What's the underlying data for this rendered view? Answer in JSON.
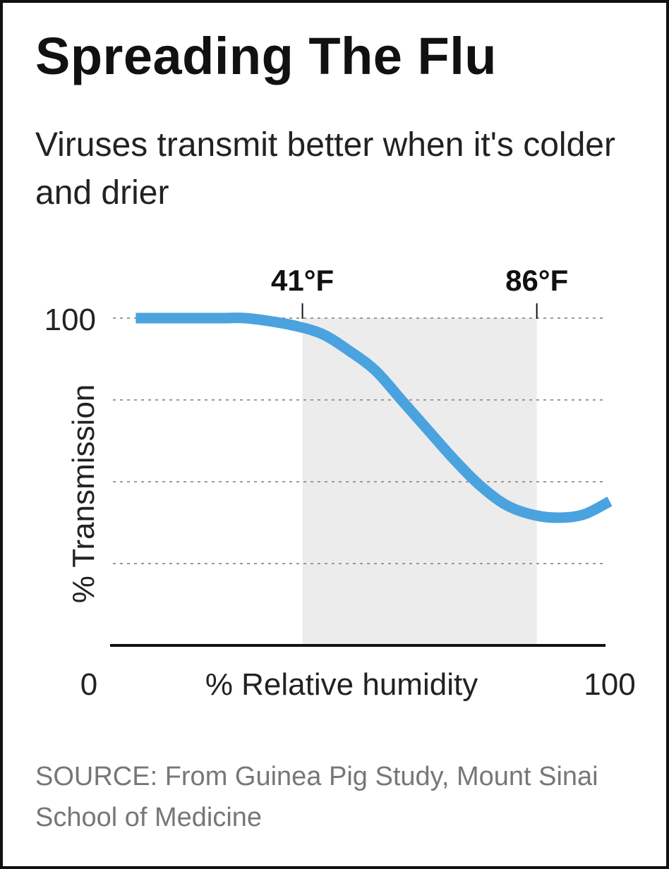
{
  "header": {
    "title": "Spreading The Flu",
    "subtitle": "Viruses transmit better when it's colder and drier"
  },
  "footer": {
    "source": "SOURCE: From Guinea Pig Study, Mount Sinai School of Medicine"
  },
  "chart_data": {
    "type": "line",
    "title": "Spreading The Flu",
    "subtitle": "Viruses transmit better when it's colder and drier",
    "xlabel": "% Relative humidity",
    "ylabel": "% Transmission",
    "xlim": [
      0,
      100
    ],
    "ylim": [
      0,
      100
    ],
    "x_tick_labels": [
      "0",
      "100"
    ],
    "y_tick_labels": [
      "100"
    ],
    "y_gridlines": [
      25,
      50,
      75,
      100
    ],
    "grid": true,
    "colors": {
      "line": "#4aa3df",
      "band": "#ececec",
      "axis": "#111111",
      "grid": "#999999"
    },
    "highlight_band": {
      "x_start": 41,
      "x_end": 86
    },
    "markers": [
      {
        "label": "41°F",
        "x": 41
      },
      {
        "label": "86°F",
        "x": 86
      }
    ],
    "series": [
      {
        "x": [
          9,
          15,
          20,
          25,
          30,
          35,
          40,
          45,
          50,
          55,
          60,
          65,
          70,
          75,
          80,
          85,
          90,
          95,
          100
        ],
        "y": [
          100,
          100,
          100,
          100,
          100,
          99,
          97.5,
          95,
          90,
          84,
          75,
          66,
          57,
          49,
          43,
          40,
          39,
          40,
          44
        ]
      }
    ]
  }
}
